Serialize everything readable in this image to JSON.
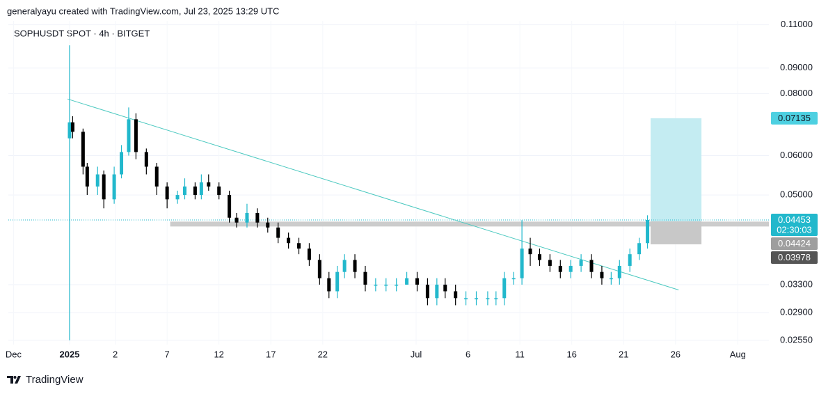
{
  "chart_data": {
    "type": "candlestick",
    "header": "generalyayu created with TradingView.com, Jul 23, 2025 13:29 UTC",
    "title": "SOPHUSDT SPOT · 4h · BITGET",
    "logo": "TradingView",
    "up_color": "#22b8cc",
    "down_color": "#000000",
    "log_scale": true,
    "grid": true,
    "xlim": [
      -8.3,
      65
    ],
    "xticks": [
      {
        "value": -7.8,
        "label": "Dec"
      },
      {
        "value": -2.4,
        "label": "2025",
        "bold": true
      },
      2,
      7,
      12,
      17,
      22,
      {
        "value": 31,
        "label": "Jul"
      },
      {
        "value": 36,
        "label": "6"
      },
      {
        "value": 41,
        "label": "11"
      },
      {
        "value": 46,
        "label": "16"
      },
      {
        "value": 51,
        "label": "21"
      },
      {
        "value": 56,
        "label": "26"
      },
      {
        "value": 62,
        "label": "Aug"
      }
    ],
    "ylim": [
      0.025,
      0.112
    ],
    "yticks": [
      {
        "value": 0.11,
        "label": "0.11000"
      },
      {
        "value": 0.09,
        "label": "0.09000"
      },
      {
        "value": 0.08,
        "label": "0.08000"
      },
      {
        "value": 0.06,
        "label": "0.06000"
      },
      {
        "value": 0.05,
        "label": "0.05000"
      },
      {
        "value": 0.033,
        "label": "0.03300"
      },
      {
        "value": 0.029,
        "label": "0.02900"
      },
      {
        "value": 0.0255,
        "label": "0.02550"
      }
    ],
    "x": [
      -2.4,
      -2.1,
      -1.1,
      -0.7,
      0.3,
      0.9,
      1.9,
      2.6,
      3.3,
      4.0,
      5.0,
      6.0,
      7.0,
      8.0,
      8.7,
      9.7,
      10.3,
      11.0,
      12.0,
      13.0,
      13.7,
      14.7,
      15.7,
      16.7,
      17.7,
      18.7,
      19.7,
      20.7,
      21.7,
      22.6,
      23.4,
      24.1,
      25.1,
      26.1,
      27.1,
      28.1,
      29.1,
      30.1,
      31.1,
      32.1,
      33.0,
      33.8,
      34.8,
      35.8,
      36.8,
      37.9,
      38.7,
      39.5,
      40.4,
      41.2,
      42.0,
      42.9,
      43.9,
      44.9,
      45.9,
      46.9,
      47.9,
      48.9,
      49.8,
      50.6,
      51.6,
      52.5,
      53.3
    ],
    "open": [
      0.065,
      0.07,
      0.067,
      0.057,
      0.052,
      0.055,
      0.049,
      0.055,
      0.061,
      0.071,
      0.061,
      0.057,
      0.052,
      0.049,
      0.05,
      0.052,
      0.05,
      0.053,
      0.052,
      0.05,
      0.045,
      0.044,
      0.046,
      0.044,
      0.043,
      0.041,
      0.04,
      0.039,
      0.037,
      0.034,
      0.032,
      0.035,
      0.037,
      0.035,
      0.033,
      0.033,
      0.033,
      0.033,
      0.034,
      0.033,
      0.031,
      0.033,
      0.032,
      0.031,
      0.031,
      0.031,
      0.031,
      0.031,
      0.034,
      0.034,
      0.039,
      0.038,
      0.037,
      0.036,
      0.035,
      0.036,
      0.037,
      0.035,
      0.034,
      0.034,
      0.036,
      0.038,
      0.04
    ],
    "high": [
      0.1,
      0.072,
      0.068,
      0.058,
      0.057,
      0.056,
      0.057,
      0.063,
      0.075,
      0.073,
      0.062,
      0.058,
      0.053,
      0.051,
      0.054,
      0.053,
      0.055,
      0.055,
      0.053,
      0.051,
      0.046,
      0.048,
      0.047,
      0.045,
      0.044,
      0.042,
      0.041,
      0.04,
      0.038,
      0.035,
      0.036,
      0.038,
      0.038,
      0.036,
      0.034,
      0.034,
      0.034,
      0.035,
      0.035,
      0.034,
      0.034,
      0.034,
      0.033,
      0.032,
      0.032,
      0.032,
      0.032,
      0.035,
      0.035,
      0.0445,
      0.041,
      0.039,
      0.038,
      0.037,
      0.037,
      0.038,
      0.038,
      0.036,
      0.035,
      0.037,
      0.039,
      0.041,
      0.0455
    ],
    "low": [
      0.0255,
      0.065,
      0.055,
      0.05,
      0.05,
      0.047,
      0.048,
      0.054,
      0.06,
      0.059,
      0.055,
      0.05,
      0.047,
      0.048,
      0.049,
      0.049,
      0.049,
      0.051,
      0.049,
      0.044,
      0.043,
      0.043,
      0.043,
      0.042,
      0.04,
      0.039,
      0.038,
      0.036,
      0.033,
      0.031,
      0.031,
      0.034,
      0.034,
      0.032,
      0.032,
      0.032,
      0.032,
      0.033,
      0.032,
      0.03,
      0.03,
      0.031,
      0.03,
      0.03,
      0.03,
      0.03,
      0.03,
      0.03,
      0.033,
      0.033,
      0.036,
      0.036,
      0.035,
      0.034,
      0.034,
      0.035,
      0.034,
      0.033,
      0.033,
      0.033,
      0.035,
      0.037,
      0.039
    ],
    "close": [
      0.07,
      0.067,
      0.057,
      0.052,
      0.055,
      0.049,
      0.055,
      0.061,
      0.071,
      0.061,
      0.057,
      0.052,
      0.049,
      0.05,
      0.052,
      0.05,
      0.053,
      0.052,
      0.05,
      0.045,
      0.044,
      0.046,
      0.044,
      0.043,
      0.041,
      0.04,
      0.039,
      0.037,
      0.034,
      0.032,
      0.035,
      0.037,
      0.035,
      0.033,
      0.033,
      0.033,
      0.033,
      0.034,
      0.033,
      0.031,
      0.033,
      0.032,
      0.031,
      0.031,
      0.031,
      0.031,
      0.031,
      0.034,
      0.034,
      0.039,
      0.038,
      0.037,
      0.036,
      0.035,
      0.036,
      0.037,
      0.035,
      0.034,
      0.034,
      0.036,
      0.038,
      0.04,
      0.04453
    ],
    "trendline": {
      "x": [
        -2.6,
        56.3
      ],
      "y": [
        0.078,
        0.0322
      ],
      "color": "#4cc9c0"
    },
    "support": {
      "x": [
        7.3,
        65
      ],
      "value": 0.0437,
      "color": "#cccccc"
    },
    "position": {
      "x": [
        53.6,
        58.5
      ],
      "target": 0.07135,
      "target_label": "0.07135",
      "entry": 0.04424,
      "entry_label": "0.04424",
      "stop": 0.03978,
      "stop_label": "0.03978",
      "target_color": "#c4ecf2",
      "stop_color": "#c8c8c8"
    },
    "last_price": 0.04453,
    "last_price_label": "0.04453",
    "countdown": "02:30:03"
  }
}
